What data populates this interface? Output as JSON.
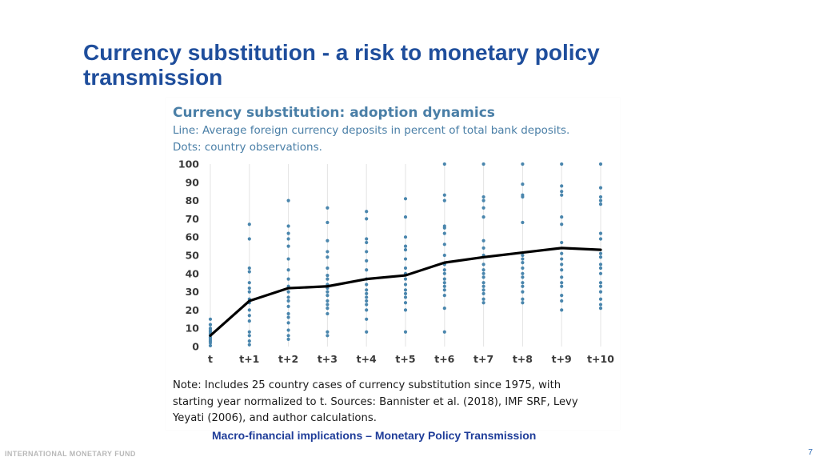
{
  "slide": {
    "title": "Currency substitution - a risk to monetary policy transmission",
    "subtitle": "Macro-financial implications – Monetary Policy Transmission",
    "organization": "INTERNATIONAL MONETARY FUND",
    "page_number": "7"
  },
  "chart_data": {
    "type": "line",
    "title": "Currency substitution: adoption dynamics",
    "subtitle_lines": [
      "Line: Average foreign currency deposits in percent of total bank deposits.",
      "Dots: country observations."
    ],
    "categories": [
      "t",
      "t+1",
      "t+2",
      "t+3",
      "t+4",
      "t+5",
      "t+6",
      "t+7",
      "t+8",
      "t+9",
      "t+10"
    ],
    "ylim": [
      0,
      100
    ],
    "yticks": [
      0,
      10,
      20,
      30,
      40,
      50,
      60,
      70,
      80,
      90,
      100
    ],
    "grid": "vertical",
    "series": [
      {
        "type": "line",
        "color": "#000000",
        "values": [
          6,
          25,
          32,
          33,
          37,
          39,
          46,
          49,
          51.5,
          54,
          53
        ]
      },
      {
        "type": "scatter",
        "color": "#4a86ad",
        "points": [
          [
            0,
            [
              0.5,
              2,
              3,
              4,
              5,
              6,
              7,
              8,
              9,
              10,
              12,
              15
            ]
          ],
          [
            1,
            [
              1,
              3,
              6,
              8,
              14,
              17,
              20,
              24,
              26,
              30,
              32,
              35,
              41,
              43,
              59,
              67
            ]
          ],
          [
            2,
            [
              4,
              6,
              9,
              13,
              16,
              18,
              22,
              25,
              27,
              30,
              33,
              37,
              42,
              48,
              55,
              59,
              62,
              66,
              80
            ]
          ],
          [
            3,
            [
              6,
              8,
              18,
              21,
              23,
              25,
              28,
              30,
              32,
              34,
              37,
              39,
              43,
              49,
              52,
              58,
              68,
              76
            ]
          ],
          [
            4,
            [
              8,
              15,
              20,
              23,
              25,
              27,
              29,
              31,
              34,
              37,
              42,
              47,
              52,
              57,
              59,
              70,
              74
            ]
          ],
          [
            5,
            [
              8,
              20,
              24,
              27,
              29,
              31,
              34,
              37,
              40,
              43,
              48,
              53,
              55,
              60,
              71,
              81
            ]
          ],
          [
            6,
            [
              8,
              21,
              28,
              31,
              33,
              35,
              37,
              40,
              42,
              45,
              50,
              56,
              62,
              65,
              66,
              80,
              83,
              100
            ]
          ],
          [
            7,
            [
              24,
              26,
              29,
              31,
              33,
              35,
              38,
              40,
              42,
              45,
              50,
              54,
              58,
              71,
              76,
              80,
              82,
              100
            ]
          ],
          [
            8,
            [
              24,
              26,
              30,
              33,
              35,
              38,
              40,
              43,
              46,
              48,
              50,
              68,
              82,
              83,
              89,
              100
            ]
          ],
          [
            9,
            [
              20,
              25,
              28,
              33,
              35,
              38,
              42,
              45,
              48,
              51,
              57,
              67,
              71,
              83,
              85,
              88,
              100
            ]
          ],
          [
            10,
            [
              21,
              23,
              26,
              30,
              33,
              35,
              40,
              43,
              45,
              49,
              51,
              59,
              62,
              78,
              80,
              82,
              87,
              100
            ]
          ]
        ]
      }
    ],
    "note_lines": [
      "Note: Includes 25 country cases of currency substitution since 1975, with",
      "starting year normalized to t. Sources: Bannister et al. (2018), IMF SRF, Levy",
      "Yeyati (2006), and author calculations."
    ]
  }
}
